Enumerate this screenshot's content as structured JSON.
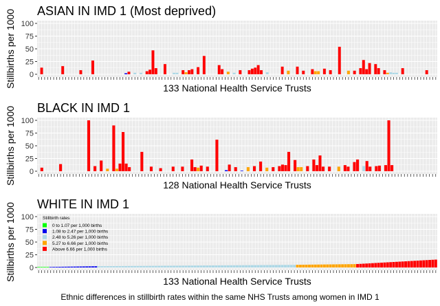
{
  "caption": "Ethnic differences in stillbirth rates within the same NHS Trusts among women in IMD 1",
  "colors": {
    "panel_bg": "#ebebeb",
    "grid": "#ffffff",
    "rate_0_1_07": "#00ff00",
    "rate_1_08_2_47": "#0000ee",
    "rate_2_48_5_26": "#add8e6",
    "rate_5_27_6_66": "#ffa500",
    "rate_above_6_66": "#ff0000"
  },
  "chart_data": [
    {
      "type": "bar",
      "title": "ASIAN IN IMD 1 (Most deprived)",
      "xlabel": "133 National Health Service Trusts",
      "ylabel": "Stillbirths per 1000",
      "ylim": [
        0,
        100
      ],
      "yticks": [
        0,
        25,
        50,
        75,
        100
      ],
      "n_categories": 133,
      "bars": [
        {
          "x": 2,
          "value": 13,
          "color": "rate_above_6_66"
        },
        {
          "x": 9,
          "value": 16,
          "color": "rate_above_6_66"
        },
        {
          "x": 15,
          "value": 8,
          "color": "rate_above_6_66"
        },
        {
          "x": 19,
          "value": 27,
          "color": "rate_above_6_66"
        },
        {
          "x": 30,
          "value": 2,
          "color": "rate_1_08_2_47"
        },
        {
          "x": 31,
          "value": 5,
          "color": "rate_above_6_66"
        },
        {
          "x": 33,
          "value": 3,
          "color": "rate_2_48_5_26"
        },
        {
          "x": 35,
          "value": 3,
          "color": "rate_2_48_5_26"
        },
        {
          "x": 37,
          "value": 6,
          "color": "rate_above_6_66"
        },
        {
          "x": 38,
          "value": 9,
          "color": "rate_above_6_66"
        },
        {
          "x": 39,
          "value": 47,
          "color": "rate_above_6_66"
        },
        {
          "x": 40,
          "value": 12,
          "color": "rate_above_6_66"
        },
        {
          "x": 43,
          "value": 20,
          "color": "rate_above_6_66"
        },
        {
          "x": 46,
          "value": 3,
          "color": "rate_2_48_5_26"
        },
        {
          "x": 47,
          "value": 3,
          "color": "rate_2_48_5_26"
        },
        {
          "x": 49,
          "value": 8,
          "color": "rate_above_6_66"
        },
        {
          "x": 50,
          "value": 4,
          "color": "rate_5_27_6_66"
        },
        {
          "x": 51,
          "value": 8,
          "color": "rate_above_6_66"
        },
        {
          "x": 52,
          "value": 10,
          "color": "rate_above_6_66"
        },
        {
          "x": 54,
          "value": 14,
          "color": "rate_above_6_66"
        },
        {
          "x": 56,
          "value": 36,
          "color": "rate_above_6_66"
        },
        {
          "x": 61,
          "value": 18,
          "color": "rate_above_6_66"
        },
        {
          "x": 62,
          "value": 10,
          "color": "rate_above_6_66"
        },
        {
          "x": 64,
          "value": 5,
          "color": "rate_5_27_6_66"
        },
        {
          "x": 66,
          "value": 3,
          "color": "rate_2_48_5_26"
        },
        {
          "x": 68,
          "value": 8,
          "color": "rate_above_6_66"
        },
        {
          "x": 71,
          "value": 8,
          "color": "rate_above_6_66"
        },
        {
          "x": 72,
          "value": 11,
          "color": "rate_above_6_66"
        },
        {
          "x": 73,
          "value": 13,
          "color": "rate_above_6_66"
        },
        {
          "x": 74,
          "value": 18,
          "color": "rate_above_6_66"
        },
        {
          "x": 75,
          "value": 8,
          "color": "rate_above_6_66"
        },
        {
          "x": 77,
          "value": 4,
          "color": "rate_2_48_5_26"
        },
        {
          "x": 82,
          "value": 15,
          "color": "rate_above_6_66"
        },
        {
          "x": 84,
          "value": 7,
          "color": "rate_5_27_6_66"
        },
        {
          "x": 87,
          "value": 15,
          "color": "rate_above_6_66"
        },
        {
          "x": 89,
          "value": 7,
          "color": "rate_above_6_66"
        },
        {
          "x": 92,
          "value": 10,
          "color": "rate_above_6_66"
        },
        {
          "x": 93,
          "value": 6,
          "color": "rate_5_27_6_66"
        },
        {
          "x": 94,
          "value": 6,
          "color": "rate_5_27_6_66"
        },
        {
          "x": 96,
          "value": 11,
          "color": "rate_above_6_66"
        },
        {
          "x": 98,
          "value": 8,
          "color": "rate_above_6_66"
        },
        {
          "x": 101,
          "value": 54,
          "color": "rate_above_6_66"
        },
        {
          "x": 104,
          "value": 7,
          "color": "rate_5_27_6_66"
        },
        {
          "x": 106,
          "value": 7,
          "color": "rate_above_6_66"
        },
        {
          "x": 108,
          "value": 12,
          "color": "rate_above_6_66"
        },
        {
          "x": 109,
          "value": 28,
          "color": "rate_above_6_66"
        },
        {
          "x": 110,
          "value": 10,
          "color": "rate_above_6_66"
        },
        {
          "x": 111,
          "value": 22,
          "color": "rate_above_6_66"
        },
        {
          "x": 113,
          "value": 20,
          "color": "rate_above_6_66"
        },
        {
          "x": 114,
          "value": 12,
          "color": "rate_above_6_66"
        },
        {
          "x": 116,
          "value": 8,
          "color": "rate_above_6_66"
        },
        {
          "x": 117,
          "value": 3,
          "color": "rate_5_27_6_66"
        },
        {
          "x": 118,
          "value": 4,
          "color": "rate_2_48_5_26"
        },
        {
          "x": 119,
          "value": 3,
          "color": "rate_2_48_5_26"
        },
        {
          "x": 120,
          "value": 3,
          "color": "rate_2_48_5_26"
        },
        {
          "x": 122,
          "value": 12,
          "color": "rate_above_6_66"
        },
        {
          "x": 130,
          "value": 8,
          "color": "rate_above_6_66"
        }
      ]
    },
    {
      "type": "bar",
      "title": "BLACK IN IMD 1",
      "xlabel": "128 National Health Service Trusts",
      "ylabel": "Stillbirths per 1000",
      "ylim": [
        0,
        100
      ],
      "yticks": [
        0,
        25,
        50,
        75,
        100
      ],
      "n_categories": 128,
      "bars": [
        {
          "x": 2,
          "value": 7,
          "color": "rate_above_6_66"
        },
        {
          "x": 8,
          "value": 14,
          "color": "rate_above_6_66"
        },
        {
          "x": 17,
          "value": 100,
          "color": "rate_above_6_66"
        },
        {
          "x": 19,
          "value": 10,
          "color": "rate_above_6_66"
        },
        {
          "x": 21,
          "value": 21,
          "color": "rate_above_6_66"
        },
        {
          "x": 23,
          "value": 5,
          "color": "rate_5_27_6_66"
        },
        {
          "x": 25,
          "value": 90,
          "color": "rate_above_6_66"
        },
        {
          "x": 26,
          "value": 5,
          "color": "rate_5_27_6_66"
        },
        {
          "x": 27,
          "value": 15,
          "color": "rate_above_6_66"
        },
        {
          "x": 28,
          "value": 77,
          "color": "rate_above_6_66"
        },
        {
          "x": 29,
          "value": 15,
          "color": "rate_above_6_66"
        },
        {
          "x": 30,
          "value": 8,
          "color": "rate_above_6_66"
        },
        {
          "x": 34,
          "value": 38,
          "color": "rate_above_6_66"
        },
        {
          "x": 37,
          "value": 9,
          "color": "rate_above_6_66"
        },
        {
          "x": 40,
          "value": 6,
          "color": "rate_above_6_66"
        },
        {
          "x": 44,
          "value": 9,
          "color": "rate_above_6_66"
        },
        {
          "x": 47,
          "value": 9,
          "color": "rate_above_6_66"
        },
        {
          "x": 50,
          "value": 23,
          "color": "rate_above_6_66"
        },
        {
          "x": 51,
          "value": 8,
          "color": "rate_above_6_66"
        },
        {
          "x": 52,
          "value": 7,
          "color": "rate_5_27_6_66"
        },
        {
          "x": 53,
          "value": 11,
          "color": "rate_above_6_66"
        },
        {
          "x": 55,
          "value": 9,
          "color": "rate_above_6_66"
        },
        {
          "x": 58,
          "value": 62,
          "color": "rate_above_6_66"
        },
        {
          "x": 61,
          "value": 2,
          "color": "rate_1_08_2_47"
        },
        {
          "x": 62,
          "value": 13,
          "color": "rate_above_6_66"
        },
        {
          "x": 64,
          "value": 8,
          "color": "rate_above_6_66"
        },
        {
          "x": 66,
          "value": 1,
          "color": "rate_1_08_2_47"
        },
        {
          "x": 68,
          "value": 8,
          "color": "rate_5_27_6_66"
        },
        {
          "x": 70,
          "value": 10,
          "color": "rate_above_6_66"
        },
        {
          "x": 72,
          "value": 19,
          "color": "rate_above_6_66"
        },
        {
          "x": 74,
          "value": 7,
          "color": "rate_5_27_6_66"
        },
        {
          "x": 76,
          "value": 8,
          "color": "rate_above_6_66"
        },
        {
          "x": 78,
          "value": 10,
          "color": "rate_above_6_66"
        },
        {
          "x": 79,
          "value": 13,
          "color": "rate_above_6_66"
        },
        {
          "x": 80,
          "value": 12,
          "color": "rate_above_6_66"
        },
        {
          "x": 81,
          "value": 38,
          "color": "rate_above_6_66"
        },
        {
          "x": 83,
          "value": 22,
          "color": "rate_above_6_66"
        },
        {
          "x": 84,
          "value": 8,
          "color": "rate_5_27_6_66"
        },
        {
          "x": 85,
          "value": 8,
          "color": "rate_5_27_6_66"
        },
        {
          "x": 87,
          "value": 10,
          "color": "rate_above_6_66"
        },
        {
          "x": 89,
          "value": 23,
          "color": "rate_above_6_66"
        },
        {
          "x": 90,
          "value": 12,
          "color": "rate_above_6_66"
        },
        {
          "x": 91,
          "value": 31,
          "color": "rate_above_6_66"
        },
        {
          "x": 92,
          "value": 9,
          "color": "rate_above_6_66"
        },
        {
          "x": 94,
          "value": 9,
          "color": "rate_above_6_66"
        },
        {
          "x": 97,
          "value": 9,
          "color": "rate_5_27_6_66"
        },
        {
          "x": 99,
          "value": 12,
          "color": "rate_above_6_66"
        },
        {
          "x": 100,
          "value": 9,
          "color": "rate_above_6_66"
        },
        {
          "x": 102,
          "value": 18,
          "color": "rate_above_6_66"
        },
        {
          "x": 103,
          "value": 23,
          "color": "rate_above_6_66"
        },
        {
          "x": 105,
          "value": 10,
          "color": "rate_2_48_5_26"
        },
        {
          "x": 106,
          "value": 20,
          "color": "rate_above_6_66"
        },
        {
          "x": 107,
          "value": 9,
          "color": "rate_above_6_66"
        },
        {
          "x": 109,
          "value": 10,
          "color": "rate_above_6_66"
        },
        {
          "x": 110,
          "value": 11,
          "color": "rate_above_6_66"
        },
        {
          "x": 112,
          "value": 12,
          "color": "rate_above_6_66"
        },
        {
          "x": 113,
          "value": 100,
          "color": "rate_above_6_66"
        },
        {
          "x": 114,
          "value": 12,
          "color": "rate_above_6_66"
        }
      ]
    },
    {
      "type": "bar",
      "title": "WHITE IN IMD 1",
      "xlabel": "133 National Health Service Trusts",
      "ylabel": "Stillbirths per 1000",
      "ylim": [
        0,
        100
      ],
      "yticks": [
        0,
        25,
        50,
        75,
        100
      ],
      "n_categories": 133,
      "sorted_series": [
        {
          "color": "rate_0_1_07",
          "from": 1.0,
          "to": 1.0,
          "count": 4
        },
        {
          "color": "rate_1_08_2_47",
          "from": 1.1,
          "to": 2.4,
          "count": 16
        },
        {
          "color": "rate_2_48_5_26",
          "from": 2.5,
          "to": 5.2,
          "count": 66
        },
        {
          "color": "rate_5_27_6_66",
          "from": 5.3,
          "to": 6.6,
          "count": 20
        },
        {
          "color": "rate_above_6_66",
          "from": 6.8,
          "to": 15.5,
          "count": 27
        }
      ],
      "legend": {
        "title": "Stillbirth rates",
        "position": "top-left",
        "items": [
          {
            "label": "0 to 1.07 per 1,000 births",
            "color": "rate_0_1_07"
          },
          {
            "label": "1.08 to 2.47 per 1,000 births",
            "color": "rate_1_08_2_47"
          },
          {
            "label": "2.48 to 5.26 per 1,000 births",
            "color": "rate_2_48_5_26"
          },
          {
            "label": "5.27 to 6.66 per 1,000 births",
            "color": "rate_5_27_6_66"
          },
          {
            "label": "Above 6.66 per 1,000 births",
            "color": "rate_above_6_66"
          }
        ]
      }
    }
  ]
}
